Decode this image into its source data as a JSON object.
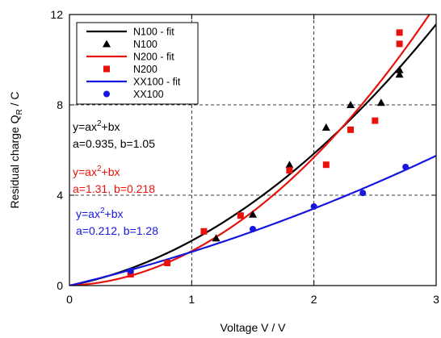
{
  "chart_data": {
    "type": "scatter",
    "xlabel": "Voltage V  /  V",
    "ylabel_main": "Residual charge Q",
    "ylabel_sub": "R",
    "ylabel_tail": "  /  C",
    "xlim": [
      0,
      3
    ],
    "ylim": [
      0,
      12
    ],
    "xticks": [
      0,
      1,
      2,
      3
    ],
    "yticks": [
      0,
      4,
      8,
      12
    ],
    "grid": "dashed at x=1,2 and y=4,8",
    "legend_position": "top-left",
    "series": [
      {
        "name": "N100 - fit",
        "kind": "fit",
        "color": "#000000",
        "a": 0.935,
        "b": 1.05
      },
      {
        "name": "N100",
        "kind": "points",
        "marker": "triangle",
        "color": "#000000",
        "x": [
          1.2,
          1.5,
          1.8,
          2.1,
          2.3,
          2.55,
          2.7,
          2.7
        ],
        "y": [
          2.1,
          3.15,
          5.35,
          7.0,
          8.0,
          8.1,
          9.35,
          9.55
        ]
      },
      {
        "name": "N200 - fit",
        "kind": "fit",
        "color": "#e8120c",
        "a": 1.31,
        "b": 0.218
      },
      {
        "name": "N200",
        "kind": "points",
        "marker": "square",
        "color": "#e8120c",
        "x": [
          0.5,
          0.8,
          1.1,
          1.4,
          1.8,
          2.1,
          2.3,
          2.5,
          2.7,
          2.7
        ],
        "y": [
          0.5,
          1.0,
          2.4,
          3.1,
          5.1,
          5.35,
          6.9,
          7.3,
          10.7,
          11.2
        ]
      },
      {
        "name": "XX100 - fit",
        "kind": "fit",
        "color": "#1616e0",
        "a": 0.212,
        "b": 1.28
      },
      {
        "name": "XX100",
        "kind": "points",
        "marker": "circle",
        "color": "#1616e0",
        "x": [
          0.5,
          1.5,
          2.0,
          2.4,
          2.75
        ],
        "y": [
          0.65,
          2.5,
          3.5,
          4.1,
          5.25
        ]
      }
    ],
    "annotations": [
      {
        "line1_base": "y=ax",
        "line1_sup": "2",
        "line1_tail": "+bx",
        "line2": "a=0.935, b=1.05",
        "color": "#000000"
      },
      {
        "line1_base": "y=ax",
        "line1_sup": "2",
        "line1_tail": "+bx",
        "line2": "a=1.31, b=0.218",
        "color": "#e8120c"
      },
      {
        "line1_base": "y=ax",
        "line1_sup": "2",
        "line1_tail": "+bx",
        "line2": "a=0.212, b=1.28",
        "color": "#1616e0"
      }
    ]
  }
}
